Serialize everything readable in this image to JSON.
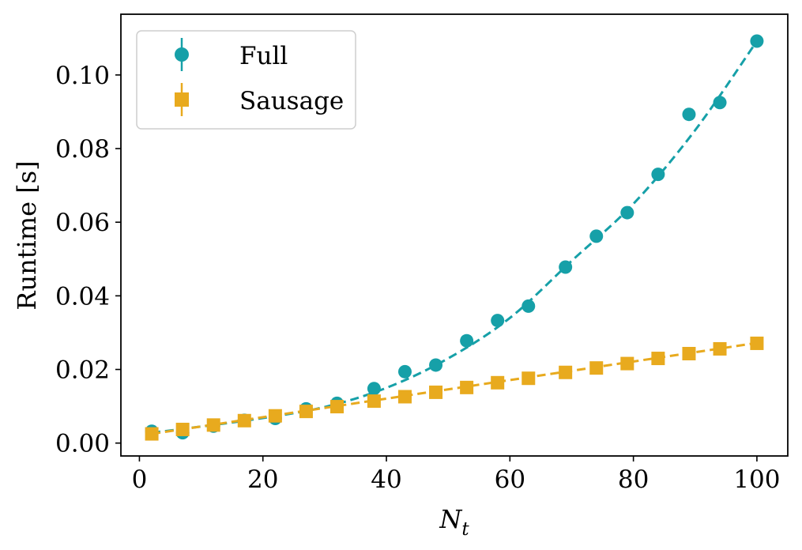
{
  "chart_data": {
    "type": "line",
    "title": "",
    "xlabel": "N",
    "xlabel_subscript": "t",
    "ylabel": "Runtime [s]",
    "xlim": [
      -3,
      105
    ],
    "ylim": [
      -0.0035,
      0.1165
    ],
    "xticks": [
      0,
      20,
      40,
      60,
      80,
      100
    ],
    "xtick_labels": [
      "0",
      "20",
      "40",
      "60",
      "80",
      "100"
    ],
    "yticks": [
      0.0,
      0.02,
      0.04,
      0.06,
      0.08,
      0.1
    ],
    "ytick_labels": [
      "0.00",
      "0.02",
      "0.04",
      "0.06",
      "0.08",
      "0.10"
    ],
    "grid": false,
    "legend_position": "top-left",
    "series": [
      {
        "name": "Full",
        "marker": "circle",
        "color": "#16A0A8",
        "x": [
          2,
          7,
          12,
          17,
          22,
          27,
          32,
          38,
          43,
          48,
          53,
          58,
          63,
          69,
          74,
          79,
          84,
          89,
          94,
          100
        ],
        "values": [
          0.0032,
          0.0028,
          0.0046,
          0.0062,
          0.0067,
          0.0093,
          0.0108,
          0.0148,
          0.0194,
          0.0212,
          0.0278,
          0.0333,
          0.0372,
          0.0478,
          0.0562,
          0.0626,
          0.073,
          0.0893,
          0.0925,
          0.1092
        ],
        "fit_x": [
          2,
          10,
          20,
          30,
          40,
          50,
          60,
          70,
          80,
          90,
          100
        ],
        "fit_values": [
          0.0028,
          0.0045,
          0.0068,
          0.0098,
          0.015,
          0.023,
          0.034,
          0.0495,
          0.065,
          0.085,
          0.1092
        ]
      },
      {
        "name": "Sausage",
        "marker": "square",
        "color": "#E8AA1E",
        "x": [
          2,
          7,
          12,
          17,
          22,
          27,
          32,
          38,
          43,
          48,
          53,
          58,
          63,
          69,
          74,
          79,
          84,
          89,
          94,
          100
        ],
        "values": [
          0.0025,
          0.0037,
          0.0049,
          0.0061,
          0.0074,
          0.0086,
          0.0099,
          0.0114,
          0.0126,
          0.0138,
          0.0151,
          0.0164,
          0.0176,
          0.0192,
          0.0204,
          0.0216,
          0.023,
          0.0243,
          0.0256,
          0.0271
        ],
        "fit_x": [
          2,
          100
        ],
        "fit_values": [
          0.0025,
          0.0272
        ]
      }
    ]
  }
}
